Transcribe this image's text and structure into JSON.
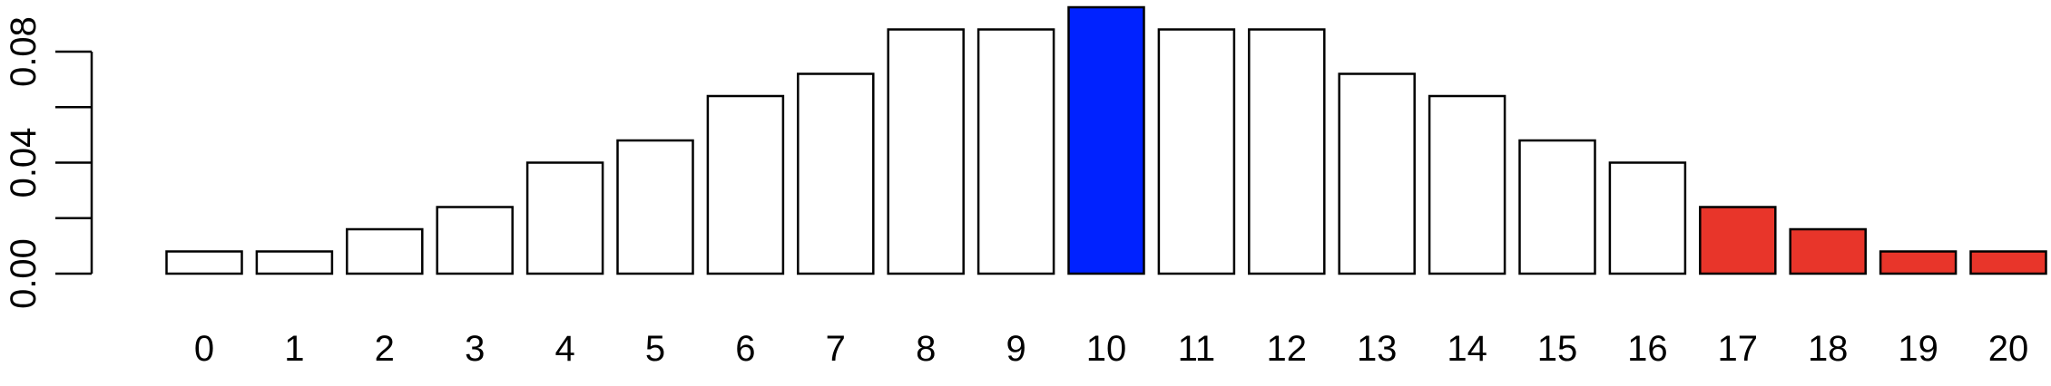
{
  "chart_data": {
    "type": "bar",
    "title": "",
    "xlabel": "",
    "ylabel": "",
    "categories": [
      "0",
      "1",
      "2",
      "3",
      "4",
      "5",
      "6",
      "7",
      "8",
      "9",
      "10",
      "11",
      "12",
      "13",
      "14",
      "15",
      "16",
      "17",
      "18",
      "19",
      "20"
    ],
    "values": [
      0.008,
      0.008,
      0.016,
      0.024,
      0.04,
      0.048,
      0.064,
      0.072,
      0.088,
      0.088,
      0.096,
      0.088,
      0.088,
      0.072,
      0.064,
      0.048,
      0.04,
      0.024,
      0.016,
      0.008,
      0.008
    ],
    "bar_colors": [
      "#ffffff",
      "#ffffff",
      "#ffffff",
      "#ffffff",
      "#ffffff",
      "#ffffff",
      "#ffffff",
      "#ffffff",
      "#ffffff",
      "#ffffff",
      "#0022ff",
      "#ffffff",
      "#ffffff",
      "#ffffff",
      "#ffffff",
      "#ffffff",
      "#ffffff",
      "#e8352a",
      "#e8352a",
      "#e8352a",
      "#e8352a"
    ],
    "y_ticks": [
      0.0,
      0.02,
      0.04,
      0.06,
      0.08
    ],
    "y_tick_labels": [
      "0.00",
      "",
      "0.04",
      "",
      "0.08"
    ],
    "ylim": [
      0,
      0.096
    ],
    "grid": false,
    "legend": "none"
  }
}
